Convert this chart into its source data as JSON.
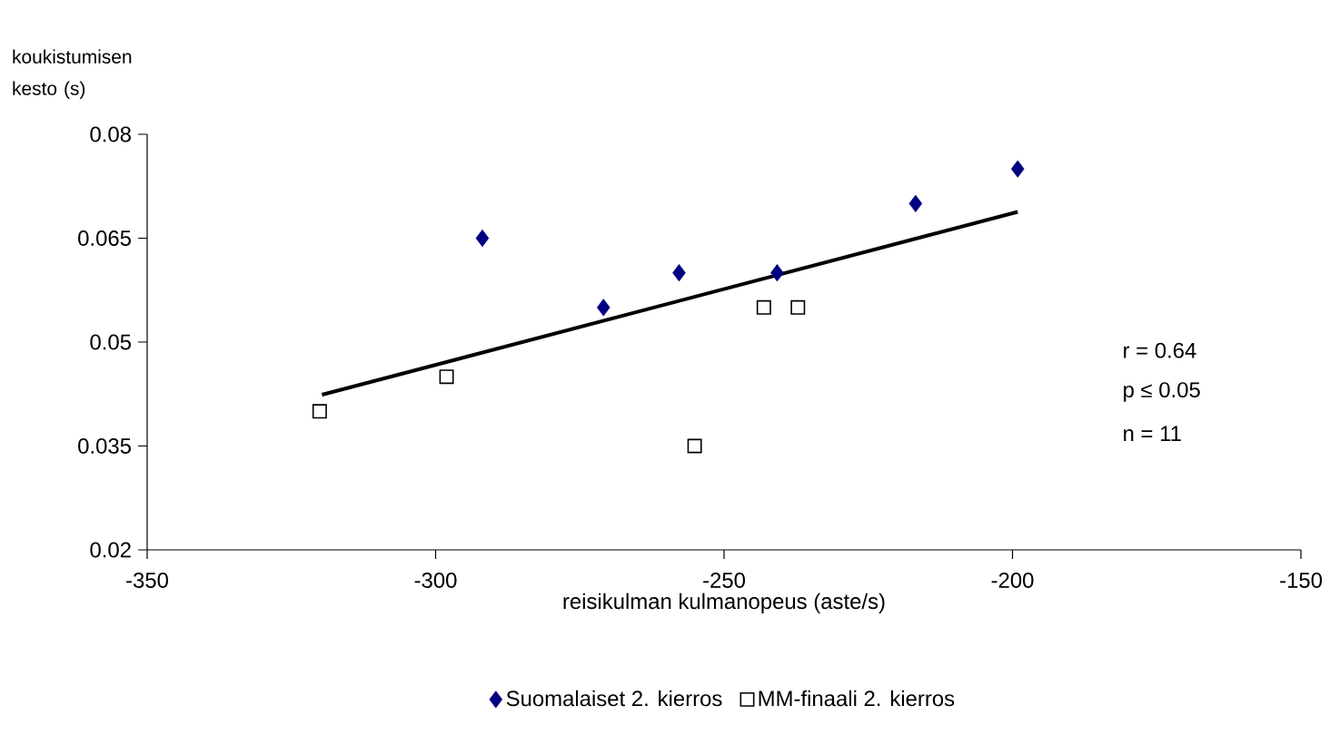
{
  "chart_data": {
    "type": "scatter",
    "xlabel": "reisikulman kulmanopeus (aste/s)",
    "ylabel": "koukistumisen kesto (s)",
    "xlim": [
      -350,
      -150
    ],
    "xticks": [
      -350,
      -300,
      -250,
      -200,
      -150
    ],
    "ylim": [
      0.02,
      0.08
    ],
    "yticks": [
      0.02,
      0.035,
      0.05,
      0.065,
      0.08
    ],
    "grid": false,
    "legend": "bottom",
    "series": [
      {
        "name": "Suomalaiset 2. kierros",
        "color": "#000080",
        "marker": "diamond",
        "x": [
          -291.9,
          -270.9,
          -257.8,
          -240.8,
          -216.8,
          -199.1
        ],
        "values": [
          0.065,
          0.055,
          0.06,
          0.06,
          0.07,
          0.075
        ]
      },
      {
        "name": "MM-finaali 2. kierros",
        "color": "#ffffff",
        "marker": "square",
        "x": [
          -320.1,
          -298.1,
          -255.1,
          -243.1,
          -237.2
        ],
        "values": [
          0.04,
          0.045,
          0.035,
          0.055,
          0.055
        ]
      },
      {
        "type": "line",
        "color": "#000000",
        "marker": "none",
        "x": [
          -319.7,
          -199.1
        ],
        "values": [
          0.0424,
          0.0688
        ]
      }
    ],
    "annotations": [
      "r = 0.64",
      "p ≤ 0.05",
      "n = 11"
    ]
  }
}
